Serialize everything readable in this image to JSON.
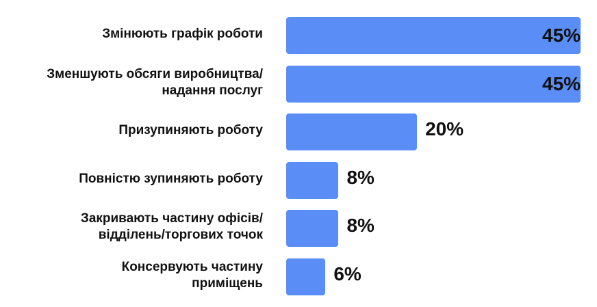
{
  "chart_data": {
    "type": "bar",
    "orientation": "horizontal",
    "categories": [
      "Змінюють графік роботи",
      "Зменшують обсяги виробництва/\nнадання послуг",
      "Призупиняють роботу",
      "Повністю зупиняють роботу",
      "Закривають частину офісів/\nвідділень/торгових точок",
      "Консервують частину\nприміщень"
    ],
    "values": [
      45,
      45,
      20,
      8,
      8,
      6
    ],
    "value_labels": [
      "45%",
      "45%",
      "20%",
      "8%",
      "8%",
      "6%"
    ],
    "xlim": [
      0,
      45
    ],
    "unit": "%",
    "grid": false,
    "legend": "none",
    "colors": {
      "bar": "#5B8DF6",
      "text": "#111111",
      "background": "#FFFFFF"
    }
  }
}
